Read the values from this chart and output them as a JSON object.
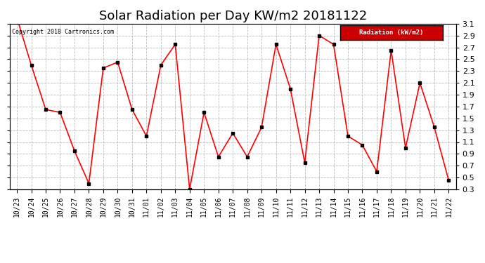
{
  "title": "Solar Radiation per Day KW/m2 20181122",
  "legend_label": "Radiation (kW/m2)",
  "copyright": "Copyright 2018 Cartronics.com",
  "dates": [
    "10/23",
    "10/24",
    "10/25",
    "10/26",
    "10/27",
    "10/28",
    "10/29",
    "10/30",
    "10/31",
    "11/01",
    "11/02",
    "11/03",
    "11/04",
    "11/05",
    "11/06",
    "11/07",
    "11/08",
    "11/09",
    "11/10",
    "11/11",
    "11/12",
    "11/13",
    "11/14",
    "11/15",
    "11/16",
    "11/17",
    "11/18",
    "11/19",
    "11/20",
    "11/21",
    "11/22"
  ],
  "values": [
    3.2,
    2.4,
    1.65,
    1.6,
    0.95,
    0.4,
    2.35,
    2.45,
    1.65,
    1.2,
    2.4,
    2.75,
    0.3,
    1.6,
    0.85,
    1.25,
    0.85,
    1.35,
    2.75,
    2.0,
    0.75,
    2.9,
    2.75,
    1.2,
    1.05,
    0.6,
    2.65,
    1.0,
    2.1,
    1.35,
    0.45
  ],
  "ylim": [
    0.3,
    3.1
  ],
  "yticks": [
    0.3,
    0.5,
    0.7,
    0.9,
    1.1,
    1.3,
    1.5,
    1.7,
    1.9,
    2.1,
    2.3,
    2.5,
    2.7,
    2.9,
    3.1
  ],
  "line_color": "red",
  "marker_color": "black",
  "bg_color": "#ffffff",
  "grid_color": "#bbbbbb",
  "title_fontsize": 13,
  "tick_fontsize": 7,
  "legend_bg": "#cc0000",
  "legend_text_color": "#ffffff"
}
